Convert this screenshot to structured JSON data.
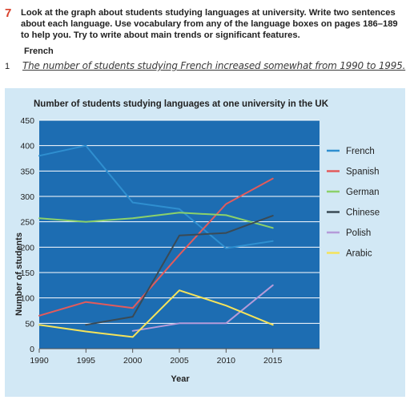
{
  "exercise": {
    "number": "7",
    "instructions": "Look at the graph about students studying languages at university. Write two sentences about each language. Use vocabulary from any of the language boxes on pages 186–189 to help you. Try to write about main trends or significant features.",
    "subheading": "French",
    "answer_number": "1",
    "answer_text": "The number of students studying French increased somewhat from 1990 to 1995."
  },
  "colors": {
    "French": "#2f8fd0",
    "Spanish": "#e35b5b",
    "German": "#8cd16a",
    "Chinese": "#3a4a55",
    "Polish": "#b59bd9",
    "Arabic": "#f5e35a",
    "panel": "#d2e8f5",
    "plot": "#1d6db2",
    "grid": "#ffffff",
    "exercise_number": "#d9412b"
  },
  "chart_data": {
    "type": "line",
    "title": "Number of students studying languages at one university in the UK",
    "xlabel": "Year",
    "ylabel": "Number of students",
    "ylim": [
      0,
      450
    ],
    "xlim": [
      1990,
      2015
    ],
    "x_ticks": [
      "1990",
      "1995",
      "2000",
      "2005",
      "2010",
      "2015"
    ],
    "y_ticks": [
      "0",
      "50",
      "100",
      "150",
      "200",
      "250",
      "300",
      "350",
      "400",
      "450"
    ],
    "grid": true,
    "legend_position": "right",
    "series": [
      {
        "name": "French",
        "points": [
          [
            1990,
            380
          ],
          [
            1995,
            400
          ],
          [
            2000,
            288
          ],
          [
            2005,
            275
          ],
          [
            2010,
            198
          ],
          [
            2015,
            212
          ]
        ]
      },
      {
        "name": "Spanish",
        "points": [
          [
            1990,
            65
          ],
          [
            1995,
            92
          ],
          [
            2000,
            80
          ],
          [
            2005,
            185
          ],
          [
            2010,
            285
          ],
          [
            2015,
            335
          ]
        ]
      },
      {
        "name": "German",
        "points": [
          [
            1990,
            257
          ],
          [
            1995,
            250
          ],
          [
            2000,
            257
          ],
          [
            2005,
            268
          ],
          [
            2010,
            263
          ],
          [
            2015,
            238
          ]
        ]
      },
      {
        "name": "Chinese",
        "points": [
          [
            1995,
            47
          ],
          [
            2000,
            63
          ],
          [
            2005,
            223
          ],
          [
            2010,
            228
          ],
          [
            2015,
            262
          ]
        ]
      },
      {
        "name": "Polish",
        "points": [
          [
            2000,
            35
          ],
          [
            2005,
            50
          ],
          [
            2010,
            50
          ],
          [
            2015,
            125
          ]
        ]
      },
      {
        "name": "Arabic",
        "points": [
          [
            1990,
            47
          ],
          [
            1995,
            34
          ],
          [
            2000,
            23
          ],
          [
            2005,
            115
          ],
          [
            2010,
            85
          ],
          [
            2015,
            47
          ]
        ]
      }
    ]
  }
}
